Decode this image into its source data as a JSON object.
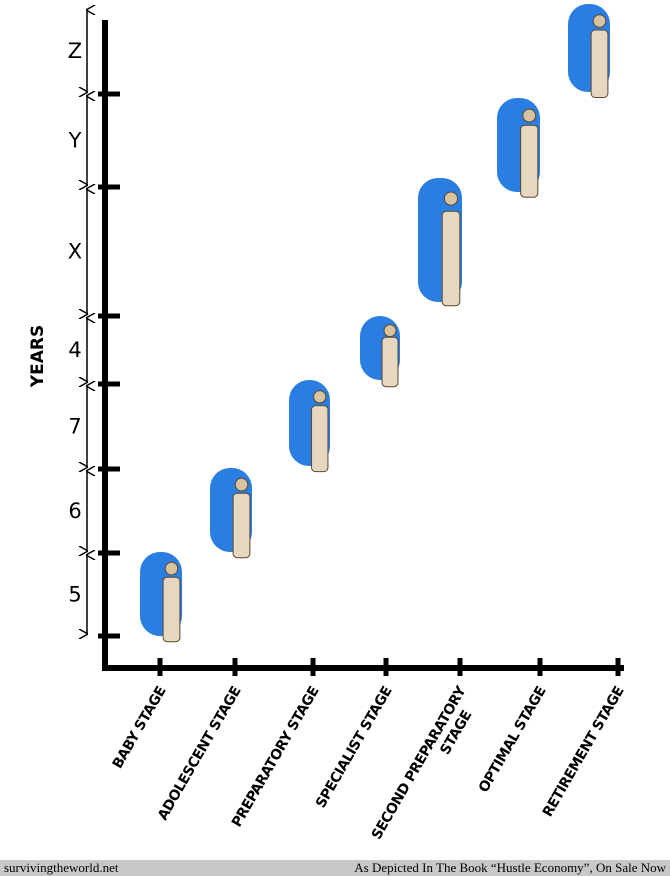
{
  "axis_title": "YEARS",
  "periods": [
    "Z",
    "Y",
    "X",
    "4",
    "7",
    "6",
    "5"
  ],
  "stages": [
    [
      "BABY STAGE"
    ],
    [
      "ADOLESCENT STAGE"
    ],
    [
      "PREPARATORY STAGE"
    ],
    [
      "SPECIALIST STAGE"
    ],
    [
      "SECOND PREPARATORY",
      "STAGE"
    ],
    [
      "OPTIMAL STAGE"
    ],
    [
      "RETIREMENT STAGE"
    ]
  ],
  "footer": {
    "left": "surviving­theworld.net",
    "right": "As Depicted In The Book “Hustle Economy”, On Sale Now"
  }
}
